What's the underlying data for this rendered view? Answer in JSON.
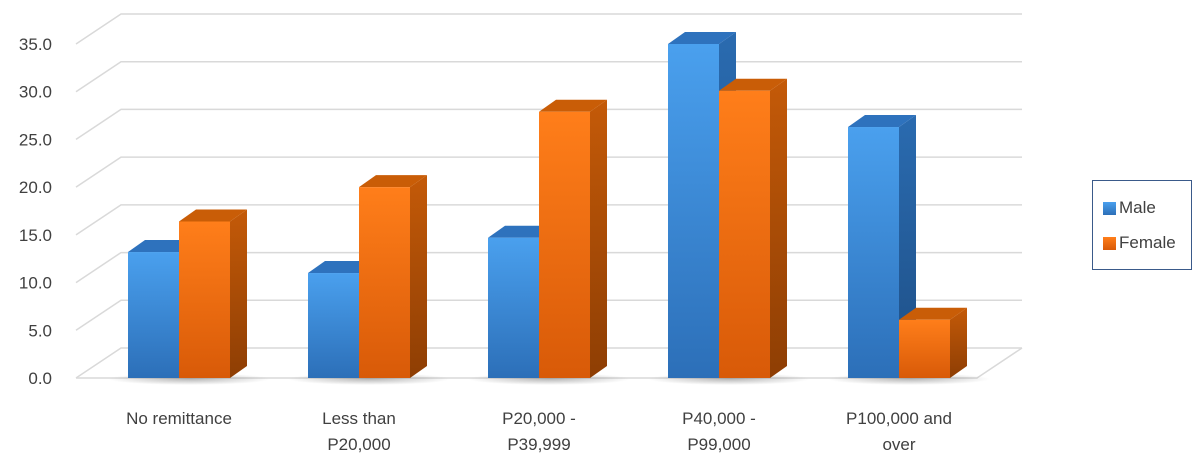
{
  "chart_data": {
    "type": "bar",
    "categories": [
      [
        "No remittance"
      ],
      [
        "Less than",
        "P20,000"
      ],
      [
        "P20,000 -",
        "P39,999"
      ],
      [
        "P40,000 -",
        "P99,000"
      ],
      [
        "P100,000 and",
        "over"
      ]
    ],
    "series": [
      {
        "name": "Male",
        "values": [
          13.2,
          11.0,
          14.7,
          35.0,
          26.3
        ],
        "color": "#3a8ee0"
      },
      {
        "name": "Female",
        "values": [
          16.4,
          20.0,
          27.9,
          30.1,
          6.1
        ],
        "color": "#f07018"
      }
    ],
    "ylim": [
      0,
      35
    ],
    "yticks": [
      "0.0",
      "5.0",
      "10.0",
      "15.0",
      "20.0",
      "25.0",
      "30.0",
      "35.0"
    ],
    "grid": true,
    "legend": "right",
    "style": "3d-clustered-column"
  }
}
